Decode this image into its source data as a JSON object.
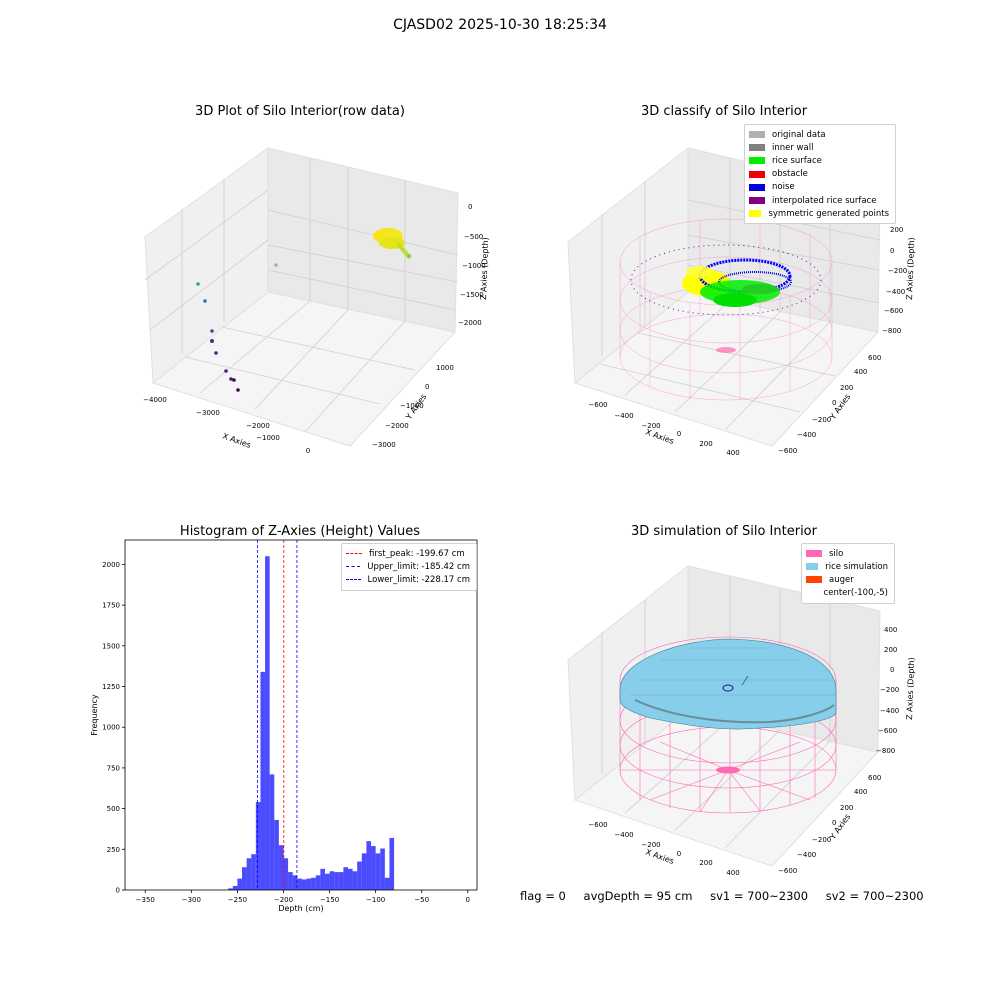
{
  "suptitle": "CJASD02 2025-10-30 18:25:34",
  "panels": {
    "raw": {
      "title": "3D Plot of Silo Interior(row data)",
      "xlabel": "X Axies",
      "ylabel": "Y Axies",
      "zlabel": "Z Axies (Depth)",
      "xticks": [
        "−4000",
        "−3000",
        "−2000",
        "−1000",
        "0"
      ],
      "yticks": [
        "−3000",
        "−2000",
        "−1000",
        "0",
        "1000"
      ],
      "zticks": [
        "0",
        "−500",
        "−1000",
        "−1500",
        "−2000"
      ]
    },
    "classify": {
      "title": "3D classify of Silo Interior",
      "xlabel": "X Axies",
      "ylabel": "Y Axies",
      "zlabel": "Z Axies (Depth)",
      "xticks": [
        "−600",
        "−400",
        "−200",
        "0",
        "200",
        "400"
      ],
      "yticks": [
        "−600",
        "−400",
        "−200",
        "0",
        "200",
        "400",
        "600"
      ],
      "zticks": [
        "200",
        "0",
        "−200",
        "−400",
        "−600",
        "−800"
      ],
      "legend": [
        {
          "label": "original data",
          "color": "#b0b0b0"
        },
        {
          "label": "inner wall",
          "color": "#808080"
        },
        {
          "label": "rice surface",
          "color": "#00ee00"
        },
        {
          "label": "obstacle",
          "color": "#ee0000"
        },
        {
          "label": "noise",
          "color": "#0000dd"
        },
        {
          "label": "interpolated rice surface",
          "color": "#800080"
        },
        {
          "label": "symmetric generated points",
          "color": "#ffff00"
        }
      ]
    },
    "sim": {
      "title": "3D simulation of Silo Interior",
      "xlabel": "X Axies",
      "ylabel": "Y Axies",
      "zlabel": "Z Axies (Depth)",
      "xticks": [
        "−600",
        "−400",
        "−200",
        "0",
        "200",
        "400"
      ],
      "yticks": [
        "−600",
        "−400",
        "−200",
        "0",
        "200",
        "400",
        "600"
      ],
      "zticks": [
        "400",
        "200",
        "0",
        "−200",
        "−400",
        "−600",
        "−800"
      ],
      "legend": [
        {
          "label": "silo",
          "color": "#ff69b4"
        },
        {
          "label": "rice simulation",
          "color": "#87ceeb"
        },
        {
          "label": "auger",
          "color": "#ff4500"
        },
        {
          "label": "center(-100,-5)",
          "color": ""
        }
      ]
    }
  },
  "chart_data": {
    "type": "bar",
    "title": "Histogram of Z-Axies (Height) Values",
    "xlabel": "Depth (cm)",
    "ylabel": "Frequency",
    "xlim": [
      -372,
      10
    ],
    "ylim": [
      0,
      2150
    ],
    "xticks": [
      -350,
      -300,
      -250,
      -200,
      -150,
      -100,
      -50,
      0
    ],
    "yticks": [
      0,
      250,
      500,
      750,
      1000,
      1250,
      1500,
      1750,
      2000
    ],
    "bar_color": "#0000ff",
    "bin_edges": [
      -260,
      -255,
      -250,
      -245,
      -240,
      -235,
      -230,
      -225,
      -220,
      -215,
      -210,
      -205,
      -200,
      -195,
      -190,
      -185,
      -180,
      -175,
      -170,
      -165,
      -160,
      -155,
      -150,
      -145,
      -140,
      -135,
      -130,
      -125,
      -120,
      -115,
      -110,
      -105,
      -100,
      -95,
      -90,
      -85,
      -80,
      -75,
      -70,
      -65,
      -60,
      -55,
      -50,
      -45,
      -40,
      -35,
      -30,
      -25,
      -20,
      -15,
      -10,
      -5,
      0
    ],
    "counts": [
      10,
      25,
      70,
      140,
      195,
      220,
      540,
      1340,
      2050,
      710,
      430,
      275,
      195,
      110,
      90,
      70,
      65,
      70,
      75,
      90,
      130,
      100,
      115,
      110,
      110,
      140,
      130,
      115,
      175,
      225,
      300,
      270,
      225,
      255,
      75,
      320,
      0,
      0,
      0,
      0,
      0,
      0,
      0,
      0,
      0,
      0,
      0,
      0,
      0,
      0,
      0,
      0
    ],
    "vlines": [
      {
        "label": "first_peak: -199.67 cm",
        "x": -199.67,
        "color": "#ff0000"
      },
      {
        "label": "Upper_limit: -185.42 cm",
        "x": -185.42,
        "color": "#0000ff"
      },
      {
        "label": "Lower_limit: -228.17 cm",
        "x": -228.17,
        "color": "#0000ff"
      }
    ]
  },
  "status": {
    "flag": "flag = 0",
    "avg": "avgDepth = 95 cm",
    "sv1": "sv1 = 700~2300",
    "sv2": "sv2 = 700~2300"
  }
}
